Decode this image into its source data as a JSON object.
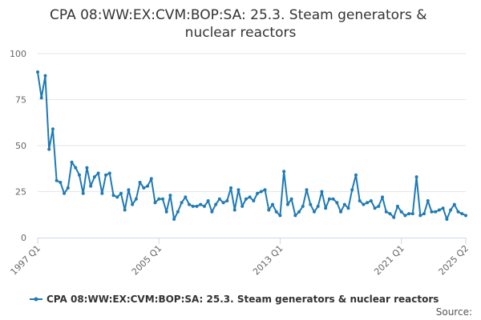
{
  "chart_data": {
    "type": "line",
    "title": "CPA 08:WW:EX:CVM:BOP:SA: 25.3. Steam generators & nuclear reactors",
    "title_lines": [
      "CPA 08:WW:EX:CVM:BOP:SA: 25.3. Steam generators &",
      "nuclear reactors"
    ],
    "x_start": "1997 Q1",
    "x_end": "2025 Q2",
    "x_tick_labels": [
      "1997 Q1",
      "2005 Q1",
      "2013 Q1",
      "2021 Q1",
      "2025 Q2"
    ],
    "ylim": [
      0,
      100
    ],
    "y_ticks": [
      0,
      25,
      50,
      75,
      100
    ],
    "grid": true,
    "legend_position": "bottom",
    "credit": "Source:",
    "series": [
      {
        "name": "CPA 08:WW:EX:CVM:BOP:SA: 25.3. Steam generators & nuclear reactors",
        "color": "#1f7ab5",
        "values": [
          90,
          76,
          88,
          48,
          59,
          31,
          30,
          24,
          27,
          41,
          38,
          34,
          24,
          38,
          28,
          33,
          35,
          24,
          34,
          35,
          23,
          22,
          24,
          15,
          26,
          18,
          21,
          30,
          27,
          28,
          32,
          19,
          21,
          21,
          14,
          23,
          10,
          14,
          19,
          22,
          18,
          17,
          17,
          18,
          17,
          20,
          14,
          18,
          21,
          19,
          20,
          27,
          15,
          26,
          17,
          21,
          22,
          20,
          24,
          25,
          26,
          15,
          18,
          14,
          12,
          36,
          18,
          21,
          12,
          14,
          17,
          26,
          18,
          14,
          17,
          25,
          16,
          21,
          21,
          19,
          14,
          18,
          16,
          26,
          34,
          20,
          18,
          19,
          20,
          16,
          17,
          22,
          14,
          13,
          11,
          17,
          14,
          12,
          13,
          13,
          33,
          12,
          13,
          20,
          14,
          14,
          15,
          16,
          10,
          15,
          18,
          14,
          13,
          12
        ]
      }
    ]
  }
}
